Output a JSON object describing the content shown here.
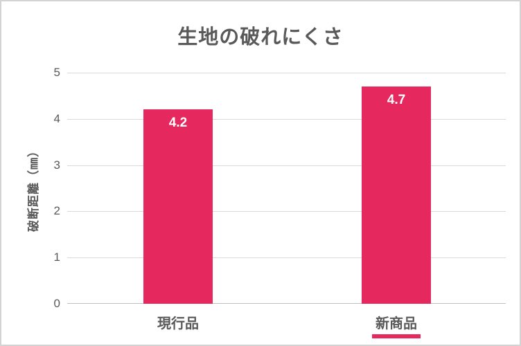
{
  "chart_data": {
    "type": "bar",
    "title": "生地の破れにくさ",
    "categories": [
      "現行品",
      "新商品"
    ],
    "values": [
      4.2,
      4.7
    ],
    "ylabel": "破断距離（㎜）",
    "xlabel": "",
    "ylim": [
      0,
      5
    ],
    "yticks": [
      0,
      1,
      2,
      3,
      4,
      5
    ],
    "grid": "horizontal",
    "legend": "none",
    "highlight_category": "新商品",
    "colors": {
      "bar": "#e5295e",
      "highlight_underline": "#e5295e",
      "gridline": "#d9d9d9",
      "axis_line": "#bfbfbf",
      "text": "#595959",
      "value_label": "#ffffff",
      "background": "#ffffff",
      "border": "#d3d3d3"
    }
  }
}
